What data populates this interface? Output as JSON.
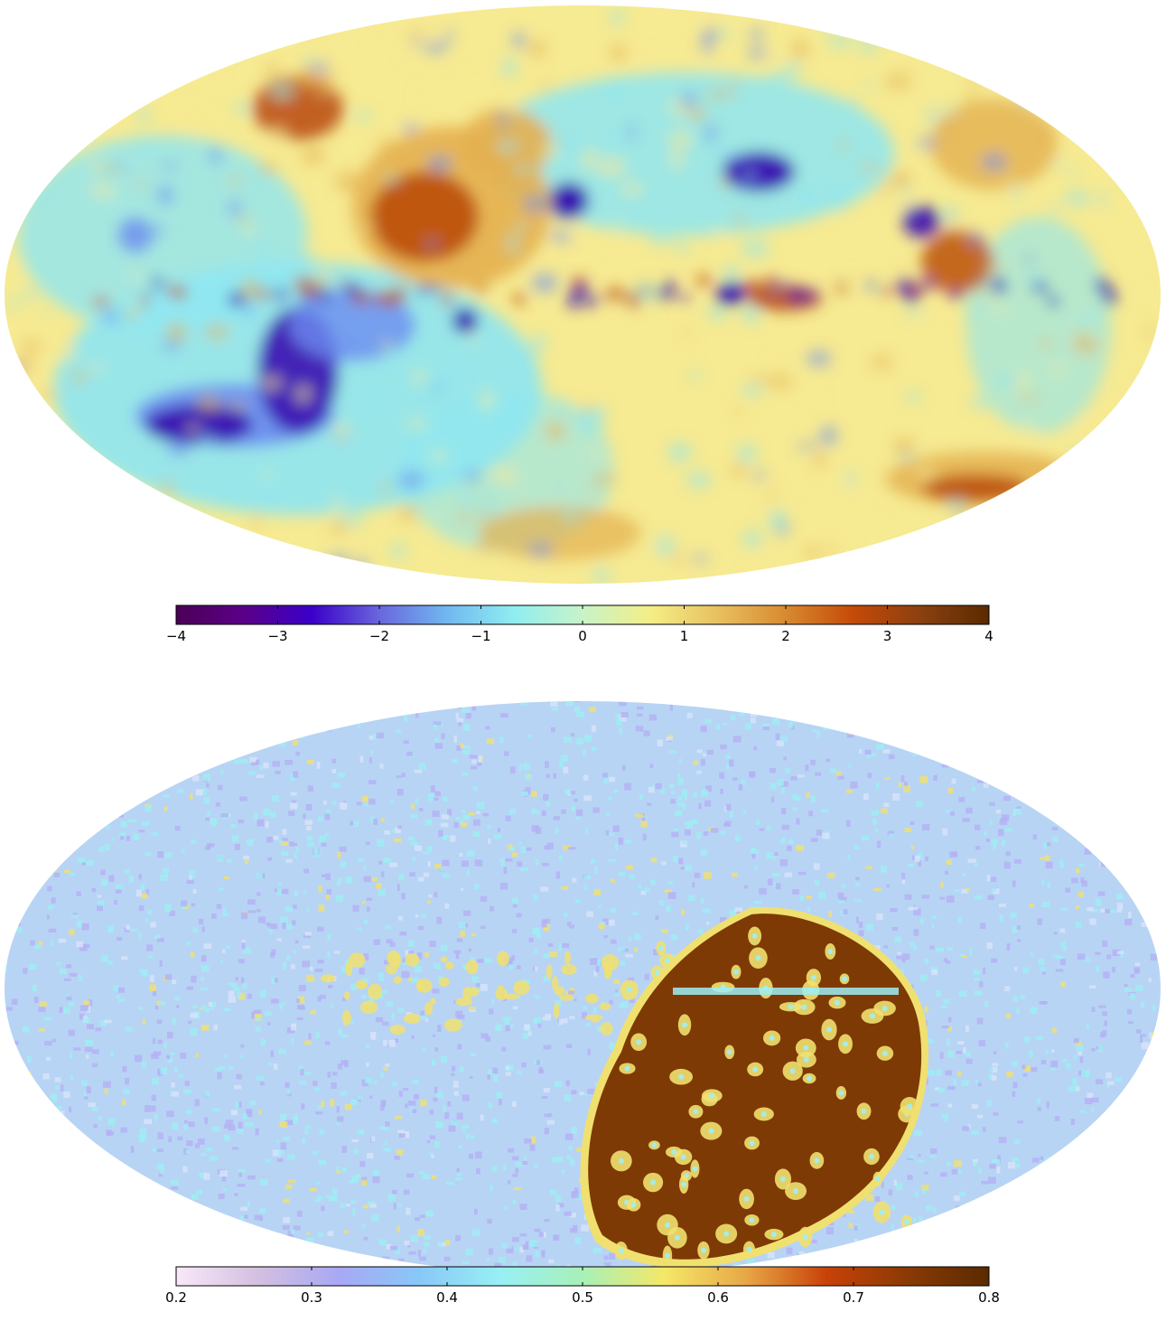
{
  "maps": [
    {
      "id": "top",
      "colorbar": {
        "colors": [
          "#4b0055",
          "#5a0088",
          "#3a00c8",
          "#6a66dd",
          "#70b8f0",
          "#90eef0",
          "#c8f3c8",
          "#f4ee86",
          "#e8c060",
          "#d88a30",
          "#c44a08",
          "#8a4010",
          "#5a2a00"
        ],
        "ticks": [
          "−4",
          "−3",
          "−2",
          "−1",
          "0",
          "1",
          "2",
          "3",
          "4"
        ],
        "range": [
          -4,
          4
        ]
      },
      "palette": {
        "background": "#f6ea92",
        "cool": "#8ee6f2",
        "blue": "#6b8cf0",
        "deep": "#3a10b0",
        "warm": "#e4b050",
        "hot": "#b84808",
        "dark": "#7a3604"
      }
    },
    {
      "id": "bottom",
      "colorbar": {
        "colors": [
          "#f8e8f8",
          "#d4c0e0",
          "#a8a8f4",
          "#88c8f8",
          "#98f0f4",
          "#a8f0b8",
          "#f4e868",
          "#e8a848",
          "#c84208",
          "#8a3a04",
          "#5a2a00"
        ],
        "ticks": [
          "0.2",
          "0.3",
          "0.4",
          "0.5",
          "0.6",
          "0.7",
          "0.8"
        ],
        "range": [
          0.2,
          0.8
        ]
      },
      "palette": {
        "background": "#b8d4f4",
        "lavender": "#b4b0f4",
        "cyan": "#9eeef4",
        "yellow": "#f0e070",
        "dark": "#7e3a04"
      }
    }
  ]
}
